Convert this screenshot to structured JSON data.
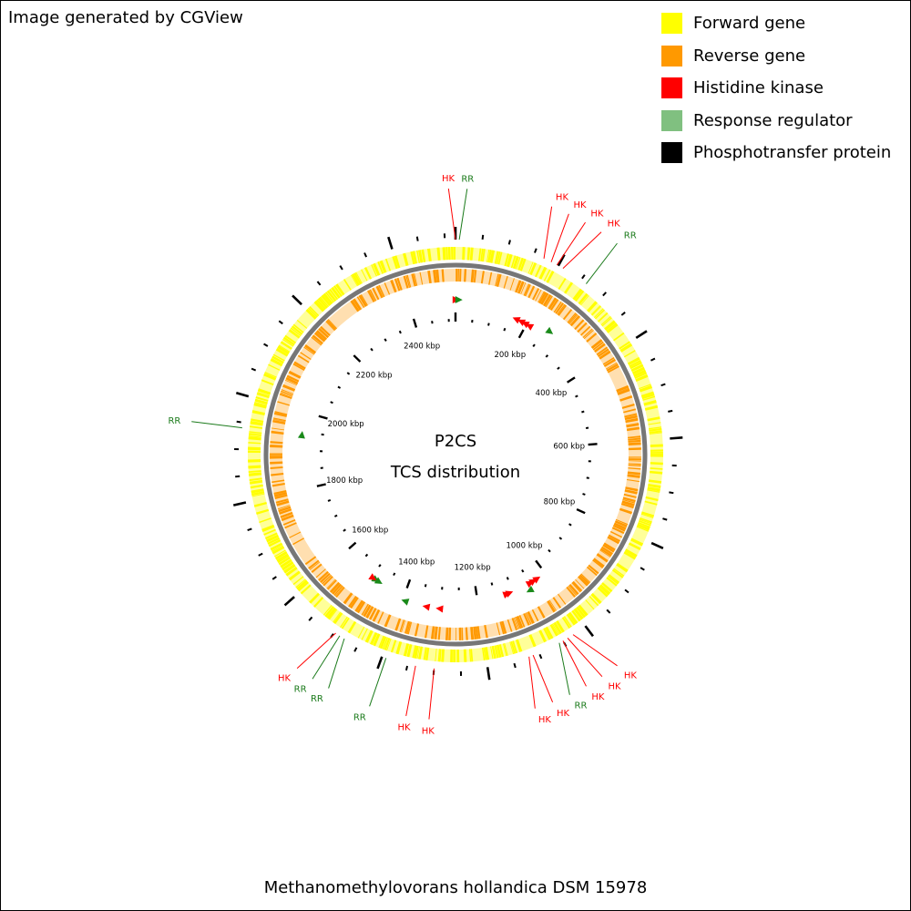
{
  "header": {
    "credit": "Image generated by CGView"
  },
  "legend": [
    {
      "label": "Forward gene",
      "color": "#ffff00"
    },
    {
      "label": "Reverse gene",
      "color": "#ff9900"
    },
    {
      "label": "Histidine kinase",
      "color": "#ff0000"
    },
    {
      "label": "Response regulator",
      "color": "#80c080"
    },
    {
      "label": "Phosphotransfer protein",
      "color": "#000000"
    }
  ],
  "map": {
    "center_title": "P2CS",
    "center_subtitle": "TCS distribution",
    "genome_length_kbp": 2520,
    "kbp_labels": [
      {
        "kbp": 200,
        "text": "200 kbp"
      },
      {
        "kbp": 400,
        "text": "400 kbp"
      },
      {
        "kbp": 600,
        "text": "600 kbp"
      },
      {
        "kbp": 800,
        "text": "800 kbp"
      },
      {
        "kbp": 1000,
        "text": "1000 kbp"
      },
      {
        "kbp": 1200,
        "text": "1200 kbp"
      },
      {
        "kbp": 1400,
        "text": "1400 kbp"
      },
      {
        "kbp": 1600,
        "text": "1600 kbp"
      },
      {
        "kbp": 1800,
        "text": "1800 kbp"
      },
      {
        "kbp": 2000,
        "text": "2000 kbp"
      },
      {
        "kbp": 2200,
        "text": "2200 kbp"
      },
      {
        "kbp": 2400,
        "text": "2400 kbp"
      }
    ],
    "tcs_genes": [
      {
        "type": "HK",
        "label": "HK",
        "kbp": 0,
        "strand": "forward"
      },
      {
        "type": "RR",
        "label": "RR",
        "kbp": 7,
        "strand": "forward"
      },
      {
        "type": "HK",
        "label": "HK",
        "kbp": 170,
        "strand": "reverse"
      },
      {
        "type": "HK",
        "label": "HK",
        "kbp": 185,
        "strand": "reverse"
      },
      {
        "type": "HK",
        "label": "HK",
        "kbp": 197,
        "strand": "reverse"
      },
      {
        "type": "HK",
        "label": "HK",
        "kbp": 210,
        "strand": "reverse"
      },
      {
        "type": "RR",
        "label": "RR",
        "kbp": 262,
        "strand": "forward"
      },
      {
        "type": "HK",
        "label": "HK",
        "kbp": 1028,
        "strand": "reverse"
      },
      {
        "type": "HK",
        "label": "HK",
        "kbp": 1040,
        "strand": "reverse"
      },
      {
        "type": "HK",
        "label": "HK",
        "kbp": 1050,
        "strand": "reverse"
      },
      {
        "type": "RR",
        "label": "RR",
        "kbp": 1058,
        "strand": "forward"
      },
      {
        "type": "HK",
        "label": "HK",
        "kbp": 1112,
        "strand": "reverse"
      },
      {
        "type": "HK",
        "label": "HK",
        "kbp": 1120,
        "strand": "reverse"
      },
      {
        "type": "HK",
        "label": "HK",
        "kbp": 1300,
        "strand": "forward"
      },
      {
        "type": "HK",
        "label": "HK",
        "kbp": 1335,
        "strand": "forward"
      },
      {
        "type": "RR",
        "label": "RR",
        "kbp": 1392,
        "strand": "forward"
      },
      {
        "type": "RR",
        "label": "RR",
        "kbp": 1478,
        "strand": "reverse"
      },
      {
        "type": "RR",
        "label": "RR",
        "kbp": 1488,
        "strand": "reverse"
      },
      {
        "type": "HK",
        "label": "HK",
        "kbp": 1497,
        "strand": "reverse"
      },
      {
        "type": "RR",
        "label": "RR",
        "kbp": 1940,
        "strand": "forward"
      }
    ]
  },
  "footer": {
    "organism": "Methanomethylovorans hollandica DSM 15978"
  }
}
